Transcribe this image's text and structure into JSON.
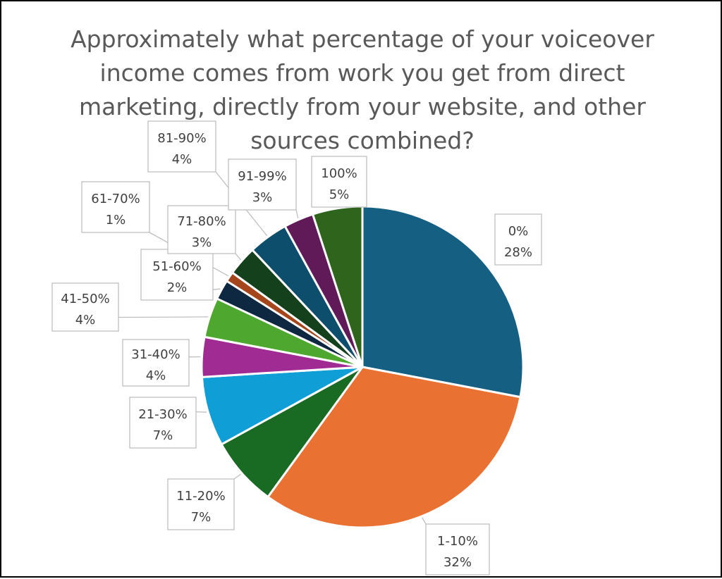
{
  "chart_data": {
    "type": "pie",
    "title": "Approximately what percentage of your voiceover income comes from work you get from direct marketing, directly from your website, and other sources combined?",
    "slices": [
      {
        "label": "0%",
        "value": 28,
        "value_label": "28%",
        "color": "#156082"
      },
      {
        "label": "1-10%",
        "value": 32,
        "value_label": "32%",
        "color": "#E97132"
      },
      {
        "label": "11-20%",
        "value": 7,
        "value_label": "7%",
        "color": "#196B24"
      },
      {
        "label": "21-30%",
        "value": 7,
        "value_label": "7%",
        "color": "#0F9ED5"
      },
      {
        "label": "31-40%",
        "value": 4,
        "value_label": "4%",
        "color": "#A02B93"
      },
      {
        "label": "41-50%",
        "value": 4,
        "value_label": "4%",
        "color": "#4EA72E"
      },
      {
        "label": "51-60%",
        "value": 2,
        "value_label": "2%",
        "color": "#0E2841"
      },
      {
        "label": "61-70%",
        "value": 1,
        "value_label": "1%",
        "color": "#A5451B"
      },
      {
        "label": "71-80%",
        "value": 3,
        "value_label": "3%",
        "color": "#14401C"
      },
      {
        "label": "81-90%",
        "value": 4,
        "value_label": "4%",
        "color": "#0D4E6C"
      },
      {
        "label": "91-99%",
        "value": 3,
        "value_label": "3%",
        "color": "#601A58"
      },
      {
        "label": "100%",
        "value": 5,
        "value_label": "5%",
        "color": "#2F641C"
      }
    ],
    "legend": "none"
  }
}
